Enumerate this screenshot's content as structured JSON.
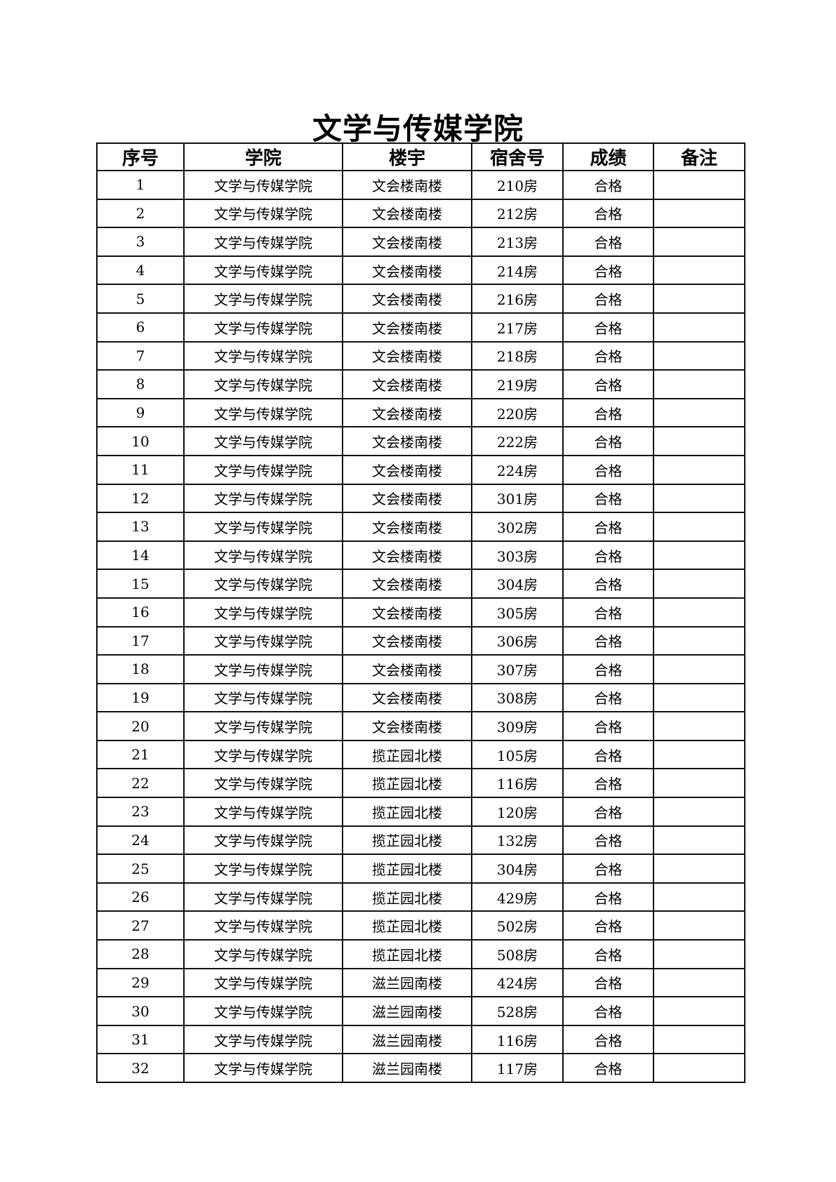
{
  "title": "文学与传媒学院",
  "columns": [
    "序号",
    "学院",
    "楼宇",
    "宿舍号",
    "成绩",
    "备注"
  ],
  "rows": [
    [
      "1",
      "文学与传媒学院",
      "文会楼南楼",
      "210房",
      "合格",
      ""
    ],
    [
      "2",
      "文学与传媒学院",
      "文会楼南楼",
      "212房",
      "合格",
      ""
    ],
    [
      "3",
      "文学与传媒学院",
      "文会楼南楼",
      "213房",
      "合格",
      ""
    ],
    [
      "4",
      "文学与传媒学院",
      "文会楼南楼",
      "214房",
      "合格",
      ""
    ],
    [
      "5",
      "文学与传媒学院",
      "文会楼南楼",
      "216房",
      "合格",
      ""
    ],
    [
      "6",
      "文学与传媒学院",
      "文会楼南楼",
      "217房",
      "合格",
      ""
    ],
    [
      "7",
      "文学与传媒学院",
      "文会楼南楼",
      "218房",
      "合格",
      ""
    ],
    [
      "8",
      "文学与传媒学院",
      "文会楼南楼",
      "219房",
      "合格",
      ""
    ],
    [
      "9",
      "文学与传媒学院",
      "文会楼南楼",
      "220房",
      "合格",
      ""
    ],
    [
      "10",
      "文学与传媒学院",
      "文会楼南楼",
      "222房",
      "合格",
      ""
    ],
    [
      "11",
      "文学与传媒学院",
      "文会楼南楼",
      "224房",
      "合格",
      ""
    ],
    [
      "12",
      "文学与传媒学院",
      "文会楼南楼",
      "301房",
      "合格",
      ""
    ],
    [
      "13",
      "文学与传媒学院",
      "文会楼南楼",
      "302房",
      "合格",
      ""
    ],
    [
      "14",
      "文学与传媒学院",
      "文会楼南楼",
      "303房",
      "合格",
      ""
    ],
    [
      "15",
      "文学与传媒学院",
      "文会楼南楼",
      "304房",
      "合格",
      ""
    ],
    [
      "16",
      "文学与传媒学院",
      "文会楼南楼",
      "305房",
      "合格",
      ""
    ],
    [
      "17",
      "文学与传媒学院",
      "文会楼南楼",
      "306房",
      "合格",
      ""
    ],
    [
      "18",
      "文学与传媒学院",
      "文会楼南楼",
      "307房",
      "合格",
      ""
    ],
    [
      "19",
      "文学与传媒学院",
      "文会楼南楼",
      "308房",
      "合格",
      ""
    ],
    [
      "20",
      "文学与传媒学院",
      "文会楼南楼",
      "309房",
      "合格",
      ""
    ],
    [
      "21",
      "文学与传媒学院",
      "揽芷园北楼",
      "105房",
      "合格",
      ""
    ],
    [
      "22",
      "文学与传媒学院",
      "揽芷园北楼",
      "116房",
      "合格",
      ""
    ],
    [
      "23",
      "文学与传媒学院",
      "揽芷园北楼",
      "120房",
      "合格",
      ""
    ],
    [
      "24",
      "文学与传媒学院",
      "揽芷园北楼",
      "132房",
      "合格",
      ""
    ],
    [
      "25",
      "文学与传媒学院",
      "揽芷园北楼",
      "304房",
      "合格",
      ""
    ],
    [
      "26",
      "文学与传媒学院",
      "揽芷园北楼",
      "429房",
      "合格",
      ""
    ],
    [
      "27",
      "文学与传媒学院",
      "揽芷园北楼",
      "502房",
      "合格",
      ""
    ],
    [
      "28",
      "文学与传媒学院",
      "揽芷园北楼",
      "508房",
      "合格",
      ""
    ],
    [
      "29",
      "文学与传媒学院",
      "滋兰园南楼",
      "424房",
      "合格",
      ""
    ],
    [
      "30",
      "文学与传媒学院",
      "滋兰园南楼",
      "528房",
      "合格",
      ""
    ],
    [
      "31",
      "文学与传媒学院",
      "滋兰园南楼",
      "116房",
      "合格",
      ""
    ],
    [
      "32",
      "文学与传媒学院",
      "滋兰园南楼",
      "117房",
      "合格",
      ""
    ]
  ]
}
